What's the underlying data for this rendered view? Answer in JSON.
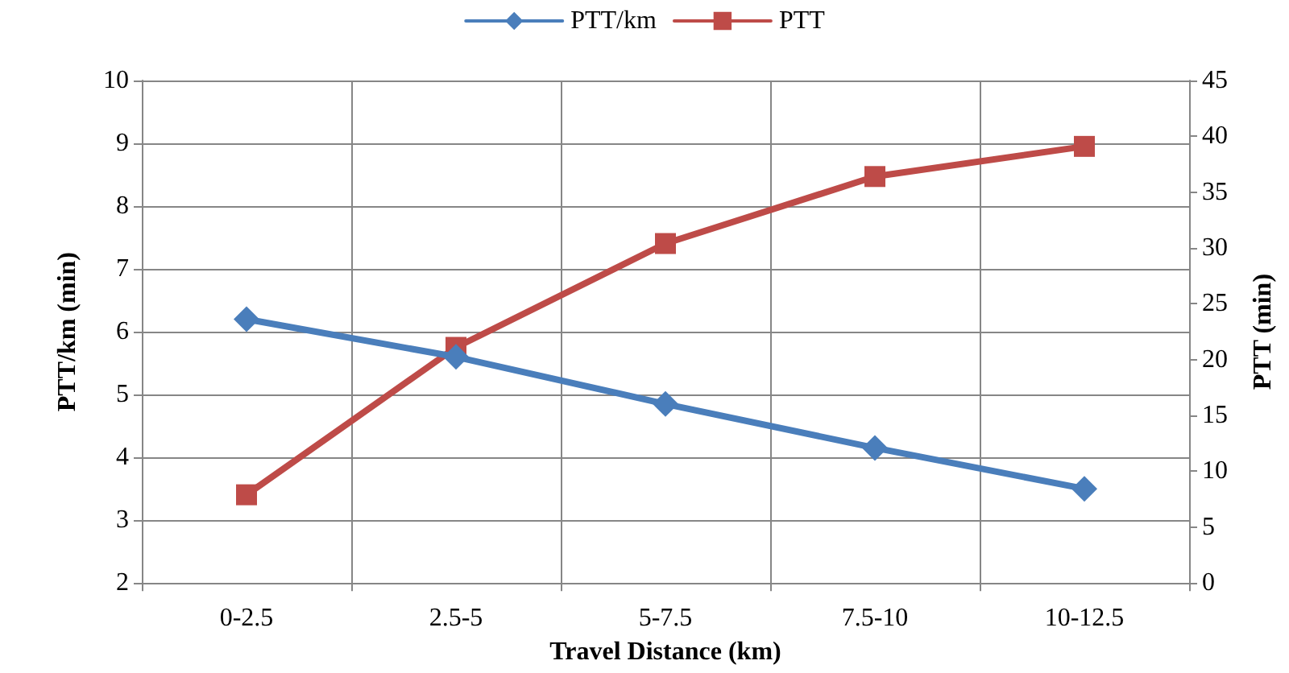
{
  "chart_data": {
    "type": "line",
    "xlabel": "Travel Distance (km)",
    "ylabel": "PTT/km (min)",
    "y2label": "PTT (min)",
    "categories": [
      "0-2.5",
      "2.5-5",
      "5-7.5",
      "7.5-10",
      "10-12.5"
    ],
    "series": [
      {
        "name": "PTT/km",
        "color": "#4a7ebb",
        "marker": "diamond",
        "values": [
          6.2,
          5.6,
          4.85,
          4.15,
          3.5
        ]
      },
      {
        "name": "PTT",
        "color": "#be4b48",
        "marker": "square",
        "axis": "y2",
        "values": [
          7.9,
          21.1,
          30.4,
          36.4,
          39.1
        ]
      }
    ],
    "ylim": [
      2,
      10
    ],
    "yticks": [
      2,
      3,
      4,
      5,
      6,
      7,
      8,
      9,
      10
    ],
    "y2lim": [
      0,
      45
    ],
    "y2ticks": [
      0,
      5,
      10,
      15,
      20,
      25,
      30,
      35,
      40,
      45
    ],
    "grid": true,
    "legend": "top",
    "line_style": "solid"
  }
}
